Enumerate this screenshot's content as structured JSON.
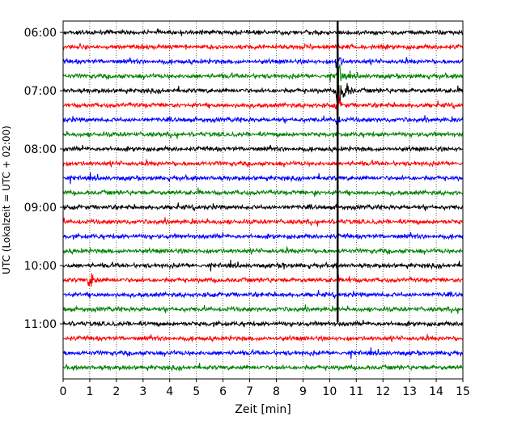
{
  "chart_data": {
    "type": "line",
    "title": "",
    "xlabel": "Zeit  [min]",
    "ylabel": "UTC (Lokalzeit = UTC + 02:00)",
    "xlim": [
      0,
      15
    ],
    "x_ticks": [
      "0",
      "1",
      "2",
      "3",
      "4",
      "5",
      "6",
      "7",
      "8",
      "9",
      "10",
      "11",
      "12",
      "13",
      "14",
      "15"
    ],
    "y_ticks": [
      "06:00",
      "07:00",
      "08:00",
      "09:00",
      "10:00",
      "11:00"
    ],
    "y_tick_trace_index": [
      0,
      4,
      8,
      12,
      16,
      20
    ],
    "grid": "vertical dotted at every minute",
    "trace_interval_min": 15,
    "trace_colors": [
      "#000000",
      "#ff0000",
      "#0000ff",
      "#008000"
    ],
    "trace_start_times": [
      "06:00",
      "06:15",
      "06:30",
      "06:45",
      "07:00",
      "07:15",
      "07:30",
      "07:45",
      "08:00",
      "08:15",
      "08:30",
      "08:45",
      "09:00",
      "09:15",
      "09:30",
      "09:45",
      "10:00",
      "10:15",
      "10:30",
      "10:45",
      "11:00",
      "11:15",
      "11:30",
      "11:45"
    ],
    "events": [
      {
        "trace_start": "06:30",
        "start_min": 10.2,
        "end_min": 10.6,
        "amplitude": "large"
      },
      {
        "trace_start": "06:45",
        "start_min": 10.2,
        "end_min": 10.8,
        "amplitude": "large"
      },
      {
        "trace_start": "07:00",
        "start_min": 10.2,
        "end_min": 11.0,
        "amplitude": "very large"
      },
      {
        "trace_start": "07:15",
        "start_min": 10.2,
        "end_min": 10.6,
        "amplitude": "large"
      },
      {
        "trace_start": "07:30",
        "start_min": 10.2,
        "end_min": 10.5,
        "amplitude": "medium"
      },
      {
        "trace_start": "10:15",
        "start_min": 0.9,
        "end_min": 1.6,
        "amplitude": "medium"
      },
      {
        "trace_start": "10:15",
        "start_min": 10.7,
        "end_min": 11.0,
        "amplitude": "small"
      },
      {
        "trace_start": "08:45",
        "start_min": 9.4,
        "end_min": 9.7,
        "amplitude": "small"
      },
      {
        "trace_start": "10:00",
        "start_min": 8.2,
        "end_min": 8.5,
        "amplitude": "small"
      }
    ],
    "vertical_marker_min": 10.3
  }
}
